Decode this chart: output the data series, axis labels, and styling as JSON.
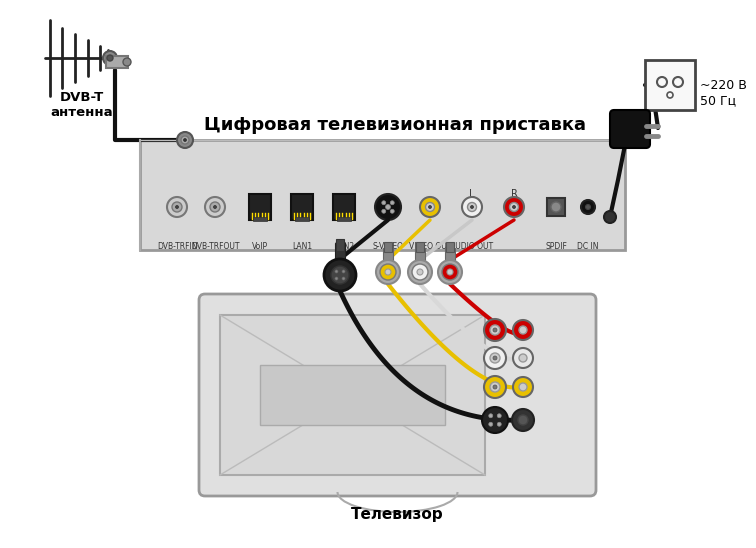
{
  "title": "Цифровая телевизионная приставка",
  "antenna_label": "DVB-T\nантенна",
  "tv_label": "Телевизор",
  "power_label": "~220 В\n50 Гц",
  "bg_color": "#ffffff",
  "box_facecolor": "#d8d8d8",
  "box_edgecolor": "#999999",
  "tv_facecolor": "#e0e0e0",
  "tv_edgecolor": "#999999",
  "screen_facecolor": "#d0d0d0",
  "cable_black": "#111111",
  "cable_yellow": "#e8c000",
  "cable_white": "#e8e8e8",
  "cable_red": "#cc0000",
  "port_label_color": "#333333",
  "text_color": "#000000"
}
